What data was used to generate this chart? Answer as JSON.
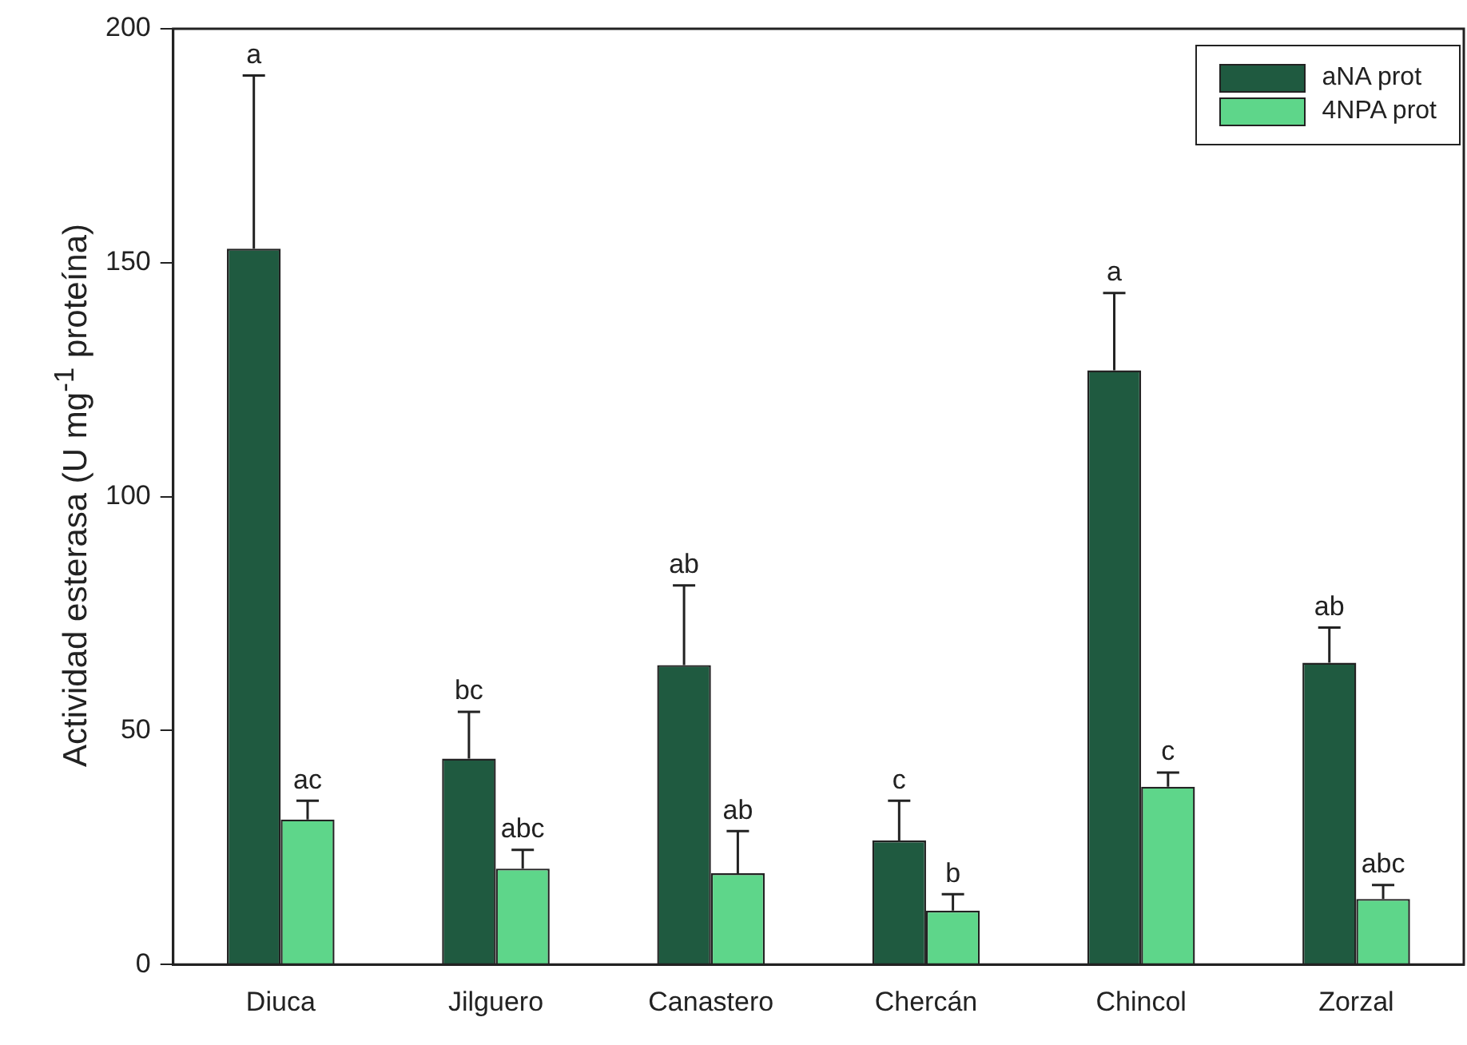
{
  "chart_data": {
    "type": "bar",
    "ylabel": "Actividad esterasa (U mg$^{-1}$ proteína)",
    "categories": [
      "Diuca",
      "Jilguero",
      "Canastero",
      "Chercán",
      "Chincol",
      "Zorzal"
    ],
    "series": [
      {
        "name": "aNA prot",
        "color": "#1f5a40",
        "values": [
          153,
          44,
          64,
          26.5,
          127,
          64.5
        ],
        "errors": [
          [
            153,
            190
          ],
          [
            44,
            54
          ],
          [
            64,
            81
          ],
          [
            26.5,
            35
          ],
          [
            127,
            143.5
          ],
          [
            64.5,
            72
          ]
        ]
      },
      {
        "name": "4NPA prot",
        "color": "#5ed68a",
        "values": [
          31,
          20.5,
          19.5,
          11.5,
          38,
          14
        ],
        "errors": [
          [
            31,
            35
          ],
          [
            20.5,
            24.5
          ],
          [
            19.5,
            28.5
          ],
          [
            11.5,
            15
          ],
          [
            38,
            41
          ],
          [
            14,
            17
          ]
        ]
      }
    ],
    "annotations": [
      "a",
      "ac",
      "bc",
      "abc",
      "ab",
      "ab",
      "c",
      "b",
      "a",
      "c",
      "ab",
      "abc"
    ],
    "ylim": [
      0,
      200
    ],
    "yticks": [
      0,
      50,
      100,
      150,
      200
    ],
    "grid": false,
    "legend": "top right"
  }
}
